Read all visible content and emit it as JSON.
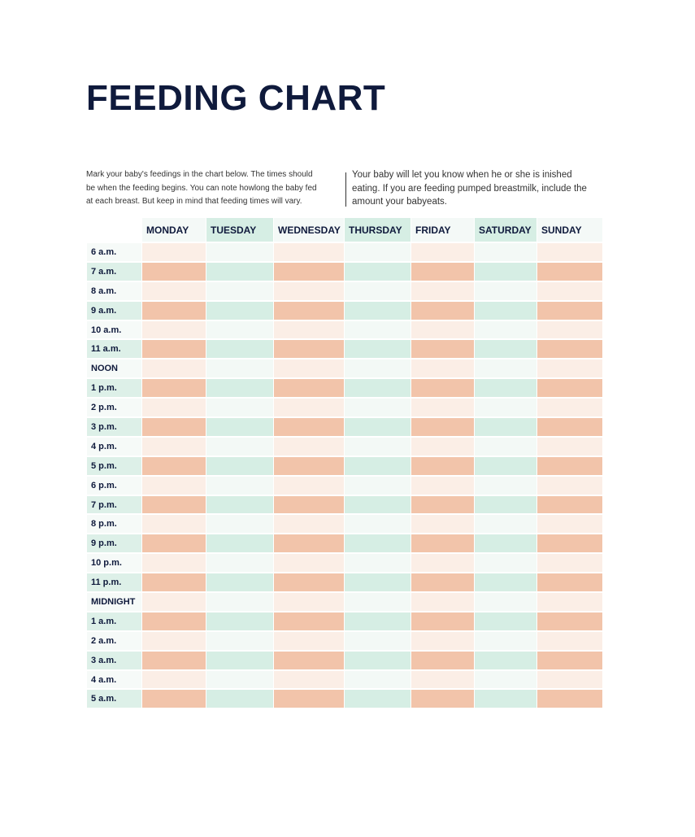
{
  "header": {
    "title": "FEEDING CHART"
  },
  "intro": {
    "left": [
      "Mark your baby's feedings in the chart below. The times should",
      "be when the feeding begins. You can note howlong the baby fed",
      "at each breast. But keep in mind that feeding times will vary."
    ],
    "right": [
      "Your baby will let you know when he or she is inished",
      "eating. If you are feeding pumped breastmilk, include the",
      "amount your babyeats."
    ]
  },
  "table": {
    "days": [
      "MONDAY",
      "TUESDAY",
      "WEDNESDAY",
      "THURSDAY",
      "FRIDAY",
      "SATURDAY",
      "SUNDAY"
    ],
    "times": [
      "6 a.m.",
      "7 a.m.",
      "8 a.m.",
      "9 a.m.",
      "10 a.m.",
      "11 a.m.",
      "NOON",
      "1 p.m.",
      "2 p.m.",
      "3 p.m.",
      "4 p.m.",
      "5 p.m.",
      "6 p.m.",
      "7 p.m.",
      "8 p.m.",
      "9 p.m.",
      "10 p.m.",
      "11 p.m.",
      "MIDNIGHT",
      "1 a.m.",
      "2 a.m.",
      "3 a.m.",
      "4 a.m.",
      "5 a.m."
    ]
  }
}
